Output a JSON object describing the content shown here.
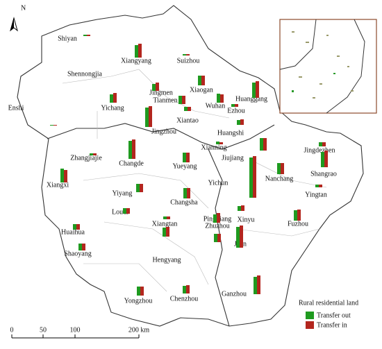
{
  "map": {
    "north": "N",
    "cities": [
      {
        "name": "Shiyan",
        "transfer_out": 2,
        "transfer_in": 2
      },
      {
        "name": "Xiangyang",
        "transfer_out": 18,
        "transfer_in": 20
      },
      {
        "name": "Suizhou",
        "transfer_out": 2,
        "transfer_in": 2
      },
      {
        "name": "Shennongjia",
        "transfer_out": 0,
        "transfer_in": 0
      },
      {
        "name": "Jingmen",
        "transfer_out": 10,
        "transfer_in": 12
      },
      {
        "name": "Xiaogan",
        "transfer_out": 14,
        "transfer_in": 14
      },
      {
        "name": "Huanggang",
        "transfer_out": 22,
        "transfer_in": 24
      },
      {
        "name": "Yichang",
        "transfer_out": 12,
        "transfer_in": 14
      },
      {
        "name": "Tianmen",
        "transfer_out": 12,
        "transfer_in": 12
      },
      {
        "name": "Wuhan",
        "transfer_out": 13,
        "transfer_in": 12
      },
      {
        "name": "Ezhou",
        "transfer_out": 4,
        "transfer_in": 4
      },
      {
        "name": "Enshi",
        "transfer_out": 1,
        "transfer_in": 1
      },
      {
        "name": "Jingzhou",
        "transfer_out": 28,
        "transfer_in": 30
      },
      {
        "name": "Xiantao",
        "transfer_out": 6,
        "transfer_in": 6
      },
      {
        "name": "Huangshi",
        "transfer_out": 7,
        "transfer_in": 8
      },
      {
        "name": "Zhangjiajie",
        "transfer_out": 3,
        "transfer_in": 3
      },
      {
        "name": "Changde",
        "transfer_out": 26,
        "transfer_in": 28
      },
      {
        "name": "Xianning",
        "transfer_out": 4,
        "transfer_in": 3
      },
      {
        "name": "Jiujiang",
        "transfer_out": 18,
        "transfer_in": 18
      },
      {
        "name": "Jingdezhen",
        "transfer_out": 6,
        "transfer_in": 6
      },
      {
        "name": "Shangrao",
        "transfer_out": 22,
        "transfer_in": 24
      },
      {
        "name": "Yueyang",
        "transfer_out": 14,
        "transfer_in": 14
      },
      {
        "name": "Xiangxi",
        "transfer_out": 20,
        "transfer_in": 18
      },
      {
        "name": "Yichun",
        "transfer_out": 58,
        "transfer_in": 60
      },
      {
        "name": "Nanchang",
        "transfer_out": 16,
        "transfer_in": 16
      },
      {
        "name": "Changsha",
        "transfer_out": 15,
        "transfer_in": 15
      },
      {
        "name": "Yiyang",
        "transfer_out": 12,
        "transfer_in": 12
      },
      {
        "name": "Yingtan",
        "transfer_out": 4,
        "transfer_in": 4
      },
      {
        "name": "Loudi",
        "transfer_out": 8,
        "transfer_in": 8
      },
      {
        "name": "Xinyu",
        "transfer_out": 7,
        "transfer_in": 8
      },
      {
        "name": "Huaihua",
        "transfer_out": 8,
        "transfer_in": 8
      },
      {
        "name": "Xiangtan",
        "transfer_out": 4,
        "transfer_in": 4
      },
      {
        "name": "Pingxiang",
        "transfer_out": 12,
        "transfer_in": 14
      },
      {
        "name": "Zhuzhou",
        "transfer_out": 12,
        "transfer_in": 12
      },
      {
        "name": "Fuzhou",
        "transfer_out": 15,
        "transfer_in": 16
      },
      {
        "name": "Ji'an",
        "transfer_out": 30,
        "transfer_in": 32
      },
      {
        "name": "Shaoyang",
        "transfer_out": 10,
        "transfer_in": 10
      },
      {
        "name": "Hengyang",
        "transfer_out": 13,
        "transfer_in": 14
      },
      {
        "name": "Yongzhou",
        "transfer_out": 13,
        "transfer_in": 13
      },
      {
        "name": "Chenzhou",
        "transfer_out": 11,
        "transfer_in": 12
      },
      {
        "name": "Ganzhou",
        "transfer_out": 25,
        "transfer_in": 27
      }
    ],
    "legend": {
      "title": "Rural residential land",
      "items": [
        {
          "name": "Transfer out",
          "color": "#1f9a1f"
        },
        {
          "name": "Transfer in",
          "color": "#b3261e"
        }
      ]
    },
    "scale": [
      "0",
      "50",
      "100",
      "200 km"
    ]
  }
}
